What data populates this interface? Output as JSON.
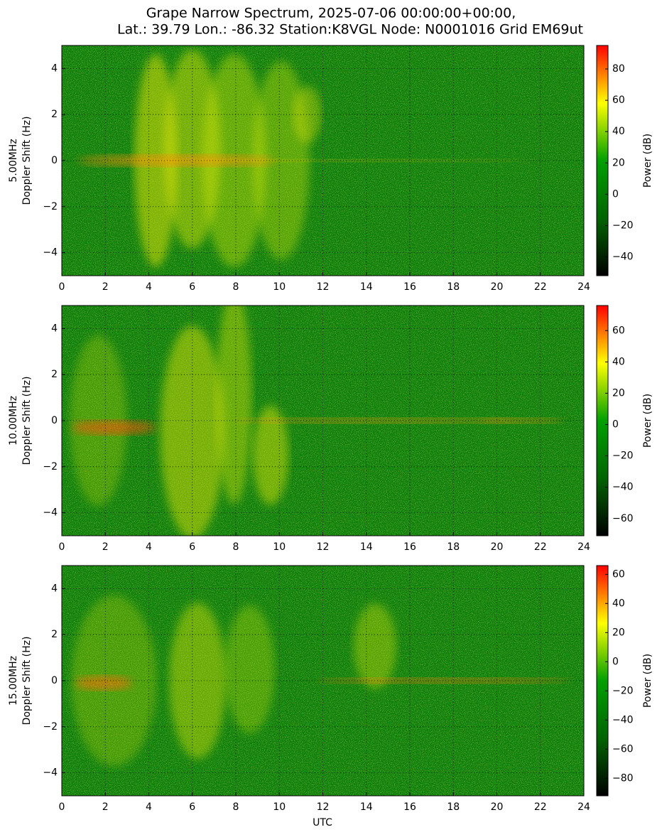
{
  "figure": {
    "title_lines": [
      "Grape Narrow Spectrum, 2025-07-06 00:00:00+00:00,",
      "Lat.: 39.79 Lon.: -86.32 Station:K8VGL Node: N0001016 Grid EM69ut"
    ],
    "xlabel": "UTC"
  },
  "chart_data": [
    {
      "type": "heatmap",
      "ylabel_lines": [
        "5.00MHz",
        "Doppler Shift (Hz)"
      ],
      "colorbar_label": "Power (dB)",
      "xlim": [
        0,
        24
      ],
      "xticks": [
        0,
        2,
        4,
        6,
        8,
        10,
        12,
        14,
        16,
        18,
        20,
        22,
        24
      ],
      "ylim": [
        -5,
        5
      ],
      "yticks": [
        {
          "value": -4,
          "label": "−4"
        },
        {
          "value": -2,
          "label": "−2"
        },
        0,
        2,
        4
      ],
      "clim": [
        -52,
        95
      ],
      "cticks": [
        {
          "value": -40,
          "label": "−40"
        },
        {
          "value": -20,
          "label": "−20"
        },
        0,
        20,
        40,
        60,
        80
      ],
      "colormap": [
        "#000000",
        "#006400",
        "#00a000",
        "#ffff00",
        "#ff0000"
      ],
      "grid": true
    },
    {
      "type": "heatmap",
      "ylabel_lines": [
        "10.00MHz",
        "Doppler Shift (Hz)"
      ],
      "colorbar_label": "Power (dB)",
      "xlim": [
        0,
        24
      ],
      "xticks": [
        0,
        2,
        4,
        6,
        8,
        10,
        12,
        14,
        16,
        18,
        20,
        22,
        24
      ],
      "ylim": [
        -5,
        5
      ],
      "yticks": [
        {
          "value": -4,
          "label": "−4"
        },
        {
          "value": -2,
          "label": "−2"
        },
        0,
        2,
        4
      ],
      "clim": [
        -71,
        76
      ],
      "cticks": [
        {
          "value": -60,
          "label": "−60"
        },
        {
          "value": -40,
          "label": "−40"
        },
        {
          "value": -20,
          "label": "−20"
        },
        0,
        20,
        40,
        60
      ],
      "colormap": [
        "#000000",
        "#006400",
        "#00a000",
        "#ffff00",
        "#ff0000"
      ],
      "grid": true
    },
    {
      "type": "heatmap",
      "ylabel_lines": [
        "15.00MHz",
        "Doppler Shift (Hz)"
      ],
      "colorbar_label": "Power (dB)",
      "xlim": [
        0,
        24
      ],
      "xticks": [
        0,
        2,
        4,
        6,
        8,
        10,
        12,
        14,
        16,
        18,
        20,
        22,
        24
      ],
      "ylim": [
        -5,
        5
      ],
      "yticks": [
        {
          "value": -4,
          "label": "−4"
        },
        {
          "value": -2,
          "label": "−2"
        },
        0,
        2,
        4
      ],
      "clim": [
        -92,
        66
      ],
      "cticks": [
        {
          "value": -80,
          "label": "−80"
        },
        {
          "value": -60,
          "label": "−60"
        },
        {
          "value": -40,
          "label": "−40"
        },
        {
          "value": -20,
          "label": "−20"
        },
        0,
        20,
        40,
        60
      ],
      "colormap": [
        "#000000",
        "#006400",
        "#00a000",
        "#ffff00",
        "#ff0000"
      ],
      "grid": true
    }
  ]
}
